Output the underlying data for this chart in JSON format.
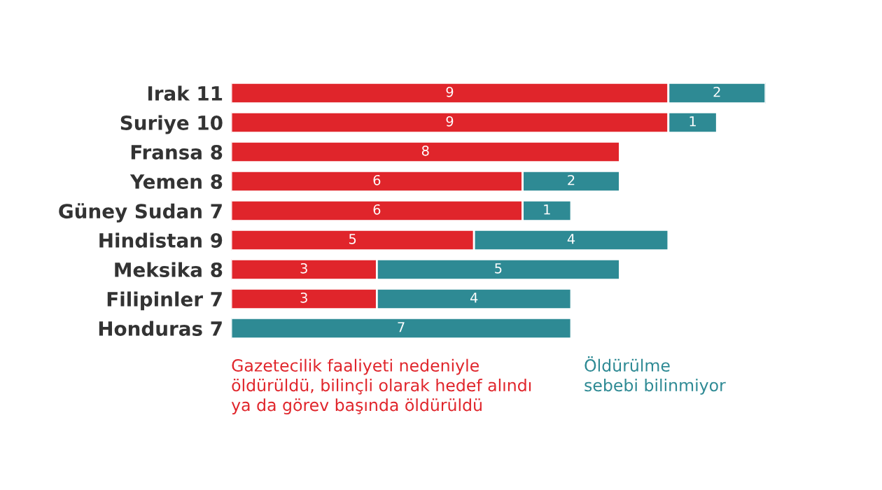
{
  "chart_data": {
    "type": "bar",
    "orientation": "horizontal",
    "stacked": true,
    "data_labels": true,
    "legend": false,
    "grid": false,
    "categories": [
      "Irak 11",
      "Suriye 10",
      "Fransa 8",
      "Yemen 8",
      "Güney Sudan 7",
      "Hindistan 9",
      "Meksika 8",
      "Filipinler 7",
      "Honduras 7"
    ],
    "series": [
      {
        "name": "Gazetecilik faaliyeti nedeniyle\nöldürüldü, bilinçli olarak hedef alındı\nya da görev başında öldürüldü",
        "color": "#e0252b",
        "values": [
          9,
          9,
          8,
          6,
          6,
          5,
          3,
          3,
          null
        ]
      },
      {
        "name": "Öldürülme\nsebebi bilinmiyor",
        "color": "#2e8a94",
        "values": [
          2,
          1,
          null,
          2,
          1,
          4,
          5,
          4,
          7
        ]
      }
    ]
  }
}
